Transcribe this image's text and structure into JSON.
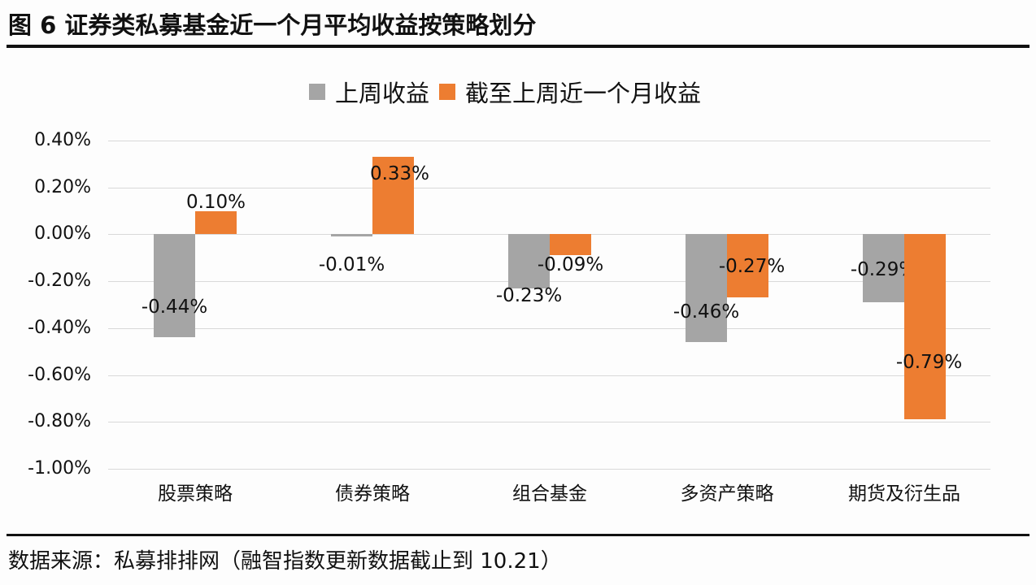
{
  "header": {
    "title": "图 6  证券类私募基金近一个月平均收益按策略划分"
  },
  "footer": {
    "source": "数据来源：私募排排网（融智指数更新数据截止到 10.21）"
  },
  "legend": [
    {
      "label": "上周收益",
      "color": "#a5a5a5"
    },
    {
      "label": "截至上周近一个月收益",
      "color": "#ed7d31"
    }
  ],
  "colors": {
    "series1": "#a5a5a5",
    "series2": "#ed7d31",
    "grid": "#d9d9d9"
  },
  "chart_data": {
    "type": "bar",
    "title": "证券类私募基金近一个月平均收益按策略划分",
    "xlabel": "",
    "ylabel": "",
    "categories": [
      "股票策略",
      "债券策略",
      "组合基金",
      "多资产策略",
      "期货及衍生品"
    ],
    "series": [
      {
        "name": "上周收益",
        "values": [
          -0.44,
          -0.01,
          -0.23,
          -0.46,
          -0.29
        ],
        "labels": [
          "-0.44%",
          "-0.01%",
          "-0.23%",
          "-0.46%",
          "-0.29%"
        ]
      },
      {
        "name": "截至上周近一个月收益",
        "values": [
          0.1,
          0.33,
          -0.09,
          -0.27,
          -0.79
        ],
        "labels": [
          "0.10%",
          "0.33%",
          "-0.09%",
          "-0.27%",
          "-0.79%"
        ]
      }
    ],
    "ylim": [
      -1.0,
      0.4
    ],
    "yticks": [
      "0.40%",
      "0.20%",
      "0.00%",
      "-0.20%",
      "-0.40%",
      "-0.60%",
      "-0.80%",
      "-1.00%"
    ],
    "unit": "%",
    "grid": true,
    "legend_position": "top"
  }
}
